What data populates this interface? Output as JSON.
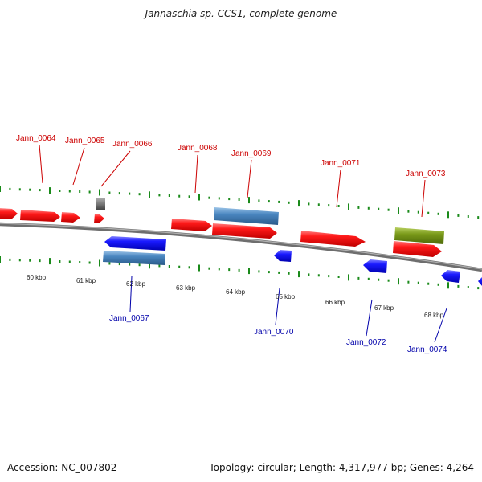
{
  "title": "Jannaschia sp. CCS1, complete genome",
  "footer": {
    "accession": "Accession: NC_007802",
    "summary": "Topology: circular; Length: 4,317,977 bp; Genes: 4,264"
  },
  "colors": {
    "forward_gene": "#ff1a1a",
    "reverse_gene": "#1a1aff",
    "rna_blue": "#4a86c0",
    "rna_green": "#7a9a1a",
    "pseudo_gray": "#777777",
    "top_label": "#cc0000",
    "bottom_label": "#0000aa",
    "tick": "#1a8a1a",
    "backbone": "#808080"
  },
  "scale_labels": [
    "60 kbp",
    "61 kbp",
    "62 kbp",
    "63 kbp",
    "64 kbp",
    "65 kbp",
    "66 kbp",
    "67 kbp",
    "68 kbp"
  ],
  "top_gene_labels": [
    "Jann_0064",
    "Jann_0065",
    "Jann_0066",
    "Jann_0068",
    "Jann_0069",
    "Jann_0071",
    "Jann_0073"
  ],
  "bottom_gene_labels": [
    "Jann_0067",
    "Jann_0070",
    "Jann_0072",
    "Jann_0074"
  ]
}
